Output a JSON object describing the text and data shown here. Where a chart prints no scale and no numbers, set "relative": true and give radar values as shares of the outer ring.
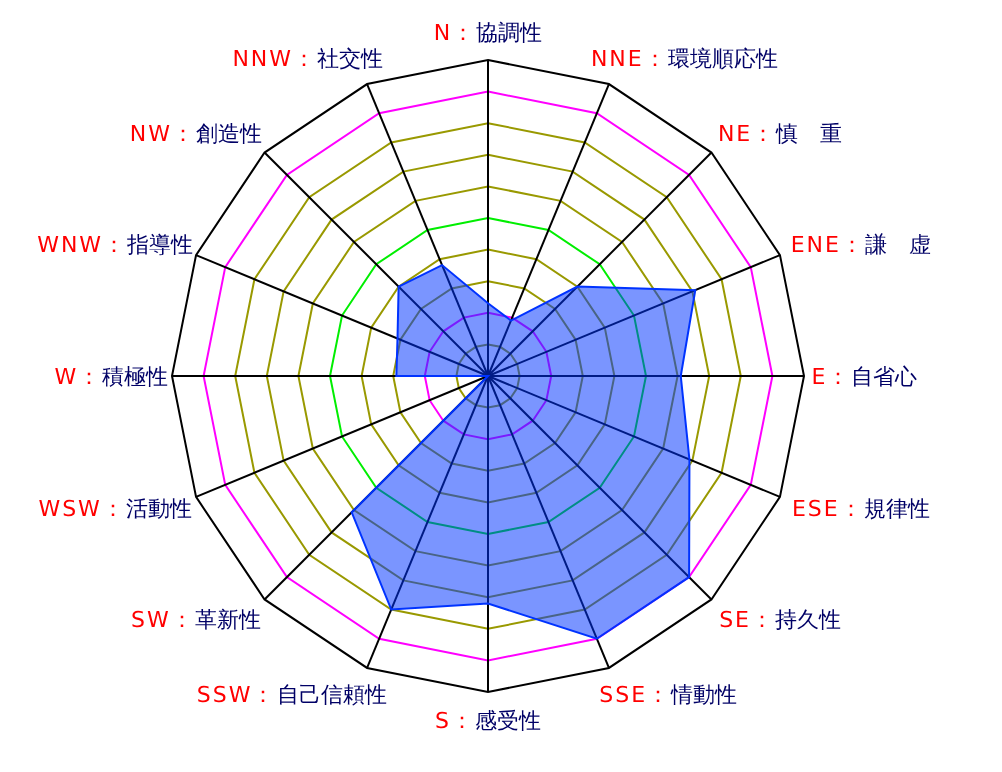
{
  "chart_data": {
    "type": "radar",
    "relative": true,
    "grid": true,
    "categories": [
      "N：協調性",
      "NNE：環境順応性",
      "NE：慎　重",
      "ENE：謙　虚",
      "E：自省心",
      "ESE：規律性",
      "SE：持久性",
      "SSE：情動性",
      "S：感受性",
      "SSW：自己信頼性",
      "SW：革新性",
      "WSW：活動性",
      "W：積極性",
      "WNW：指導性",
      "NW：創造性",
      "NNW：社交性"
    ],
    "series": [
      {
        "color": "#0033ff",
        "values": [
          0.23,
          0.19,
          0.4,
          0.71,
          0.61,
          0.69,
          0.9,
          0.9,
          0.72,
          0.8,
          0.61,
          0,
          0.29,
          0.31,
          0.4,
          0.38
        ]
      }
    ]
  }
}
